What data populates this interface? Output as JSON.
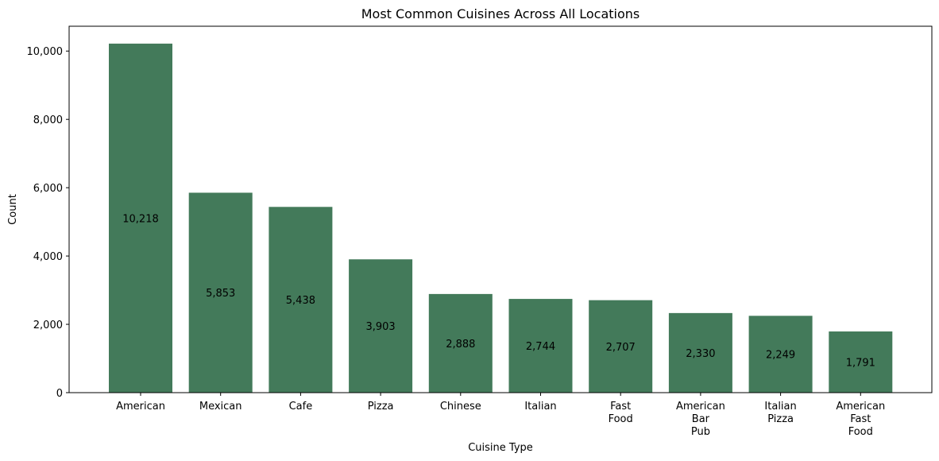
{
  "chart_data": {
    "type": "bar",
    "title": "Most Common Cuisines Across All Locations",
    "xlabel": "Cuisine Type",
    "ylabel": "Count",
    "ylim": [
      0,
      10727
    ],
    "yticks": [
      0,
      2000,
      4000,
      6000,
      8000,
      10000
    ],
    "ytick_labels": [
      "0",
      "2,000",
      "4,000",
      "6,000",
      "8,000",
      "10,000"
    ],
    "categories": [
      [
        "American"
      ],
      [
        "Mexican"
      ],
      [
        "Cafe"
      ],
      [
        "Pizza"
      ],
      [
        "Chinese"
      ],
      [
        "Italian"
      ],
      [
        "Fast",
        "Food"
      ],
      [
        "American",
        "Bar",
        "Pub"
      ],
      [
        "Italian",
        "Pizza"
      ],
      [
        "American",
        "Fast",
        "Food"
      ]
    ],
    "values": [
      10218,
      5853,
      5438,
      3903,
      2888,
      2744,
      2707,
      2330,
      2249,
      1791
    ],
    "value_labels": [
      "10,218",
      "5,853",
      "5,438",
      "3,903",
      "2,888",
      "2,744",
      "2,707",
      "2,330",
      "2,249",
      "1,791"
    ],
    "bar_color": "#437a5a",
    "grid": false,
    "legend": "none"
  }
}
